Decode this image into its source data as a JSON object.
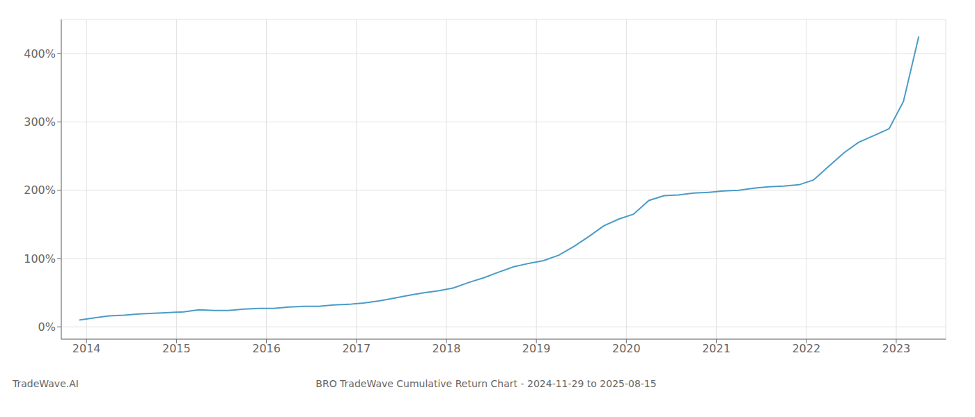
{
  "chart_data": {
    "type": "line",
    "title": "BRO TradeWave Cumulative Return Chart - 2024-11-29 to 2025-08-15",
    "annotations": [
      "TradeWave.AI"
    ],
    "color": "#4a9cc7",
    "x": [
      2013.92,
      2014.08,
      2014.25,
      2014.42,
      2014.58,
      2014.75,
      2014.92,
      2015.08,
      2015.25,
      2015.42,
      2015.58,
      2015.75,
      2015.92,
      2016.08,
      2016.25,
      2016.42,
      2016.58,
      2016.75,
      2016.92,
      2017.08,
      2017.25,
      2017.42,
      2017.58,
      2017.75,
      2017.92,
      2018.08,
      2018.25,
      2018.42,
      2018.58,
      2018.75,
      2018.92,
      2019.08,
      2019.25,
      2019.42,
      2019.58,
      2019.75,
      2019.92,
      2020.08,
      2020.25,
      2020.42,
      2020.58,
      2020.75,
      2020.92,
      2021.08,
      2021.25,
      2021.42,
      2021.58,
      2021.75,
      2021.92,
      2022.08,
      2022.25,
      2022.42,
      2022.58,
      2022.75,
      2022.92,
      2023.08,
      2023.25
    ],
    "values": [
      10,
      13,
      16,
      17,
      19,
      20,
      21,
      22,
      25,
      24,
      24,
      26,
      27,
      27,
      29,
      30,
      30,
      32,
      33,
      35,
      38,
      42,
      46,
      50,
      53,
      57,
      65,
      72,
      80,
      88,
      93,
      97,
      105,
      118,
      132,
      148,
      158,
      165,
      185,
      192,
      193,
      196,
      197,
      199,
      200,
      203,
      205,
      206,
      208,
      215,
      235,
      255,
      270,
      280,
      290,
      330,
      425
    ],
    "xlim": [
      2013.72,
      2023.55
    ],
    "ylim": [
      -18,
      450
    ],
    "xticks": [
      2014,
      2015,
      2016,
      2017,
      2018,
      2019,
      2020,
      2021,
      2022,
      2023
    ],
    "yticks": [
      {
        "value": 0,
        "label": "0%"
      },
      {
        "value": 100,
        "label": "100%"
      },
      {
        "value": 200,
        "label": "200%"
      },
      {
        "value": 300,
        "label": "300%"
      },
      {
        "value": 400,
        "label": "400%"
      }
    ],
    "grid": true
  }
}
